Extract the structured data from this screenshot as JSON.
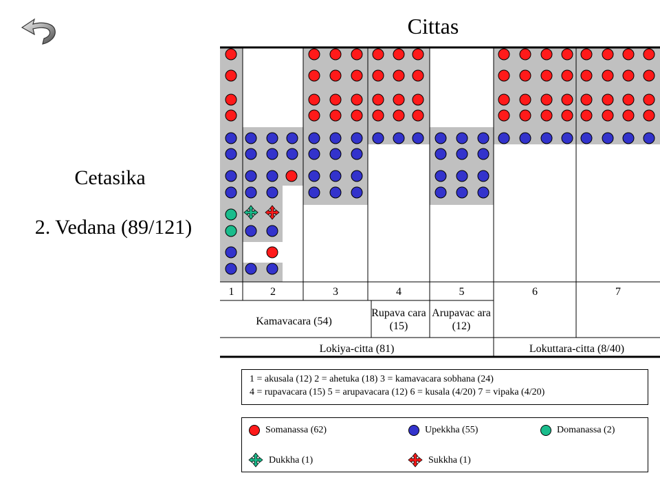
{
  "title": "Cittas",
  "side": {
    "heading": "Cetasika",
    "subheading": "2. Vedana (89/121)"
  },
  "colors": {
    "somanassa": "#ff1a1a",
    "upekkha": "#3333cc",
    "domanassa": "#1abc8c",
    "shade": "#c0c0c0"
  },
  "columns": {
    "numbers": [
      "1",
      "2",
      "3",
      "4",
      "5",
      "6",
      "7"
    ],
    "groups": [
      {
        "label": "Kamavacara  (54)"
      },
      {
        "label": "Rupava cara  (15)"
      },
      {
        "label": "Arupavac ara  (12)"
      }
    ],
    "spheres": [
      {
        "label": "Lokiya-citta  (81)"
      },
      {
        "label": "Lokuttara-citta  (8/40)"
      }
    ]
  },
  "definitions": {
    "line1": "1 = akusala (12) 2 = ahetuka (18) 3 = kamavacara sobhana (24)",
    "line2": "4 = rupavacara (15) 5 = arupavacara (12) 6 = kusala (4/20) 7 = vipaka (4/20)"
  },
  "legend": {
    "items": [
      {
        "label": "Somanassa (62)",
        "icon": "red-dot-icon"
      },
      {
        "label": "Upekkha (55)",
        "icon": "blue-dot-icon"
      },
      {
        "label": "Domanassa (2)",
        "icon": "green-dot-icon"
      },
      {
        "label": "Dukkha (1)",
        "icon": "green-cross-arrow-icon"
      },
      {
        "label": "Sukkha (1)",
        "icon": "red-cross-arrow-icon"
      }
    ]
  }
}
